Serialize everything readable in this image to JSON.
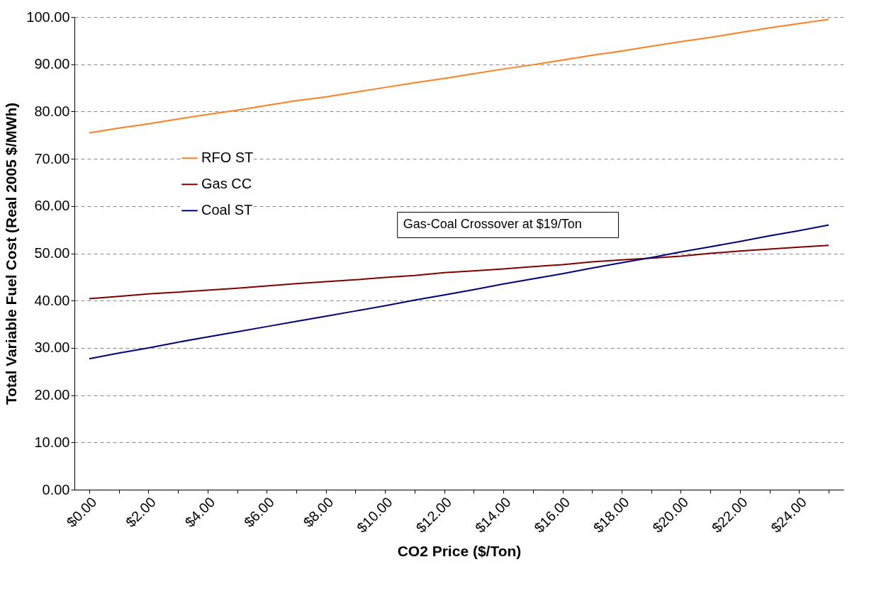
{
  "chart_data": {
    "type": "line",
    "xlabel": "CO2 Price ($/Ton)",
    "ylabel": "Total Variable Fuel Cost (Real 2005 $/MWh)",
    "categories": [
      "$0.00",
      null,
      "$2.00",
      null,
      "$4.00",
      null,
      "$6.00",
      null,
      "$8.00",
      null,
      "$10.00",
      null,
      "$12.00",
      null,
      "$14.00",
      null,
      "$16.00",
      null,
      "$18.00",
      null,
      "$20.00",
      null,
      "$22.00",
      null,
      "$24.00",
      null
    ],
    "series": [
      {
        "name": "RFO ST",
        "color": "#ff7f1e",
        "values": [
          75.5,
          76.5,
          77.4,
          78.4,
          79.4,
          80.3,
          81.3,
          82.3,
          83.1,
          84.1,
          85.1,
          86.1,
          87.0,
          88.0,
          89.0,
          89.9,
          90.9,
          91.9,
          92.8,
          93.8,
          94.8,
          95.7,
          96.7,
          97.7,
          98.6,
          99.5
        ]
      },
      {
        "name": "Gas CC",
        "color": "#800000",
        "values": [
          40.4,
          40.9,
          41.4,
          41.8,
          42.2,
          42.6,
          43.1,
          43.6,
          44.0,
          44.4,
          44.9,
          45.3,
          45.9,
          46.3,
          46.7,
          47.2,
          47.6,
          48.2,
          48.6,
          49.0,
          49.4,
          50.0,
          50.5,
          50.9,
          51.3,
          51.7
        ]
      },
      {
        "name": "Coal ST",
        "color": "#000080",
        "values": [
          27.7,
          28.9,
          30.0,
          31.2,
          32.3,
          33.4,
          34.5,
          35.6,
          36.7,
          37.8,
          38.9,
          40.1,
          41.2,
          42.3,
          43.5,
          44.6,
          45.7,
          46.9,
          48.0,
          49.1,
          50.3,
          51.4,
          52.5,
          53.7,
          54.8,
          56.0
        ]
      }
    ],
    "ylim": [
      0,
      100
    ],
    "yticks": [
      {
        "value": 0,
        "label": "0.00"
      },
      {
        "value": 10,
        "label": "10.00"
      },
      {
        "value": 20,
        "label": "20.00"
      },
      {
        "value": 30,
        "label": "30.00"
      },
      {
        "value": 40,
        "label": "40.00"
      },
      {
        "value": 50,
        "label": "50.00"
      },
      {
        "value": 60,
        "label": "60.00"
      },
      {
        "value": 70,
        "label": "70.00"
      },
      {
        "value": 80,
        "label": "80.00"
      },
      {
        "value": 90,
        "label": "90.00"
      },
      {
        "value": 100,
        "label": "100.00"
      }
    ],
    "grid": "y",
    "legend": "left",
    "marker": "none",
    "line_style": "solid",
    "annotations": [
      "Gas-Coal Crossover at $19/Ton"
    ]
  }
}
